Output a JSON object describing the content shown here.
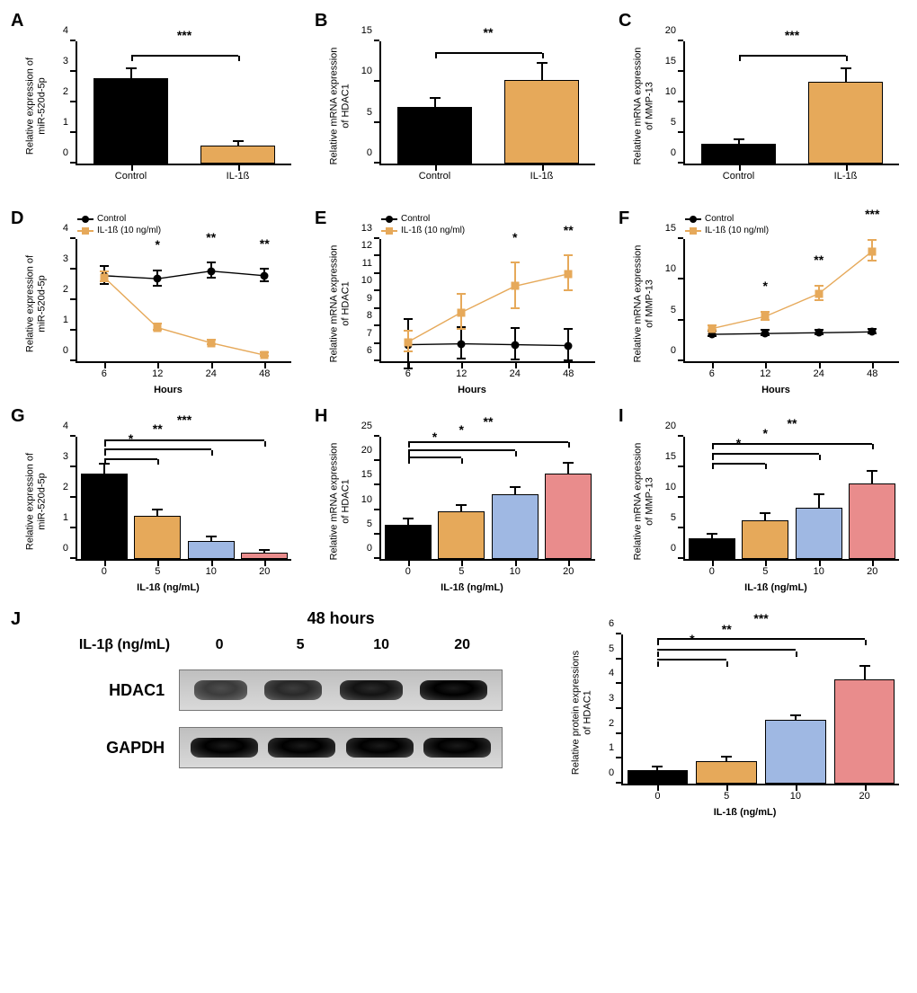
{
  "colors": {
    "black": "#000000",
    "orange": "#e6a95a",
    "blue": "#9fb8e3",
    "red": "#e98c8c",
    "axis": "#000000",
    "bg": "#ffffff"
  },
  "panels": {
    "A": {
      "label": "A",
      "type": "bar",
      "ylabel": "Relative expression of\nmiR-520d-5p",
      "ylim": [
        0,
        4
      ],
      "ytick_step": 1,
      "categories": [
        "Control",
        "IL-1ß"
      ],
      "values": [
        2.8,
        0.6
      ],
      "errors": [
        0.3,
        0.12
      ],
      "bar_colors": [
        "#000000",
        "#e6a95a"
      ],
      "bar_width": 0.35,
      "sig": [
        {
          "from": 0,
          "to": 1,
          "text": "***",
          "y": 3.5
        }
      ]
    },
    "B": {
      "label": "B",
      "type": "bar",
      "ylabel": "Relative mRNA expression\nof HDAC1",
      "ylim": [
        0,
        15
      ],
      "ytick_step": 5,
      "categories": [
        "Control",
        "IL-1ß"
      ],
      "values": [
        7.0,
        10.3
      ],
      "errors": [
        0.9,
        1.9
      ],
      "bar_colors": [
        "#000000",
        "#e6a95a"
      ],
      "bar_width": 0.35,
      "sig": [
        {
          "from": 0,
          "to": 1,
          "text": "**",
          "y": 13.5
        }
      ]
    },
    "C": {
      "label": "C",
      "type": "bar",
      "ylabel": "Relative mRNA expression\nof MMP-13",
      "ylim": [
        0,
        20
      ],
      "ytick_step": 5,
      "categories": [
        "Control",
        "IL-1ß"
      ],
      "values": [
        3.3,
        13.4
      ],
      "errors": [
        0.5,
        2.0
      ],
      "bar_colors": [
        "#000000",
        "#e6a95a"
      ],
      "bar_width": 0.35,
      "sig": [
        {
          "from": 0,
          "to": 1,
          "text": "***",
          "y": 17.5
        }
      ]
    },
    "D": {
      "label": "D",
      "type": "line",
      "ylabel": "Relative expression of\nmiR-520d-5p",
      "xlabel": "Hours",
      "ylim": [
        0,
        4
      ],
      "ytick_step": 1,
      "x": [
        6,
        12,
        24,
        48
      ],
      "legend": [
        {
          "name": "Control",
          "marker": "circle",
          "color": "#000000"
        },
        {
          "name": "IL-1ß (10 ng/ml)",
          "marker": "square",
          "color": "#e6a95a"
        }
      ],
      "series": [
        {
          "name": "Control",
          "color": "#000000",
          "marker": "circle",
          "y": [
            2.8,
            2.7,
            2.95,
            2.8
          ],
          "err": [
            0.3,
            0.25,
            0.25,
            0.2
          ]
        },
        {
          "name": "IL-1ß (10 ng/ml)",
          "color": "#e6a95a",
          "marker": "square",
          "y": [
            2.75,
            1.1,
            0.6,
            0.2
          ],
          "err": [
            0.15,
            0.1,
            0.08,
            0.06
          ]
        }
      ],
      "point_sig": [
        "",
        "*",
        "**",
        "**"
      ]
    },
    "E": {
      "label": "E",
      "type": "line",
      "ylabel": "Relative mRNA expression\nof HDAC1",
      "xlabel": "Hours",
      "ylim": [
        6,
        13
      ],
      "ytick_step": 1,
      "x": [
        6,
        12,
        24,
        48
      ],
      "legend": [
        {
          "name": "Control",
          "marker": "circle",
          "color": "#000000"
        },
        {
          "name": "IL-1ß (10 ng/ml)",
          "marker": "square",
          "color": "#e6a95a"
        }
      ],
      "series": [
        {
          "name": "Control",
          "color": "#000000",
          "marker": "circle",
          "y": [
            6.95,
            7.0,
            6.95,
            6.9
          ],
          "err": [
            1.4,
            0.9,
            0.9,
            0.9
          ]
        },
        {
          "name": "IL-1ß (10 ng/ml)",
          "color": "#e6a95a",
          "marker": "square",
          "y": [
            7.1,
            8.8,
            10.3,
            11.0
          ],
          "err": [
            0.6,
            1.0,
            1.3,
            1.0
          ]
        }
      ],
      "point_sig": [
        "",
        "",
        "*",
        "**"
      ]
    },
    "F": {
      "label": "F",
      "type": "line",
      "ylabel": "Relative mRNA expression\nof MMP-13",
      "xlabel": "Hours",
      "ylim": [
        0,
        15
      ],
      "ytick_step": 5,
      "x": [
        6,
        12,
        24,
        48
      ],
      "legend": [
        {
          "name": "Control",
          "marker": "circle",
          "color": "#000000"
        },
        {
          "name": "IL-1ß (10 ng/ml)",
          "marker": "square",
          "color": "#e6a95a"
        }
      ],
      "series": [
        {
          "name": "Control",
          "color": "#000000",
          "marker": "circle",
          "y": [
            3.3,
            3.4,
            3.5,
            3.6
          ],
          "err": [
            0.3,
            0.3,
            0.3,
            0.3
          ]
        },
        {
          "name": "IL-1ß (10 ng/ml)",
          "color": "#e6a95a",
          "marker": "square",
          "y": [
            4.0,
            5.5,
            8.3,
            13.5
          ],
          "err": [
            0.3,
            0.5,
            0.9,
            1.3
          ]
        }
      ],
      "point_sig": [
        "",
        "*",
        "**",
        "***"
      ]
    },
    "G": {
      "label": "G",
      "type": "bar",
      "ylabel": "Relative expression of\nmiR-520d-5p",
      "xlabel": "IL-1ß (ng/mL)",
      "ylim": [
        0,
        4
      ],
      "ytick_step": 1,
      "categories": [
        "0",
        "5",
        "10",
        "20"
      ],
      "values": [
        2.8,
        1.4,
        0.6,
        0.2
      ],
      "errors": [
        0.3,
        0.2,
        0.12,
        0.06
      ],
      "bar_colors": [
        "#000000",
        "#e6a95a",
        "#9fb8e3",
        "#e98c8c"
      ],
      "bar_width": 0.22,
      "sig": [
        {
          "from": 0,
          "to": 1,
          "text": "*",
          "y": 3.25
        },
        {
          "from": 0,
          "to": 2,
          "text": "**",
          "y": 3.55
        },
        {
          "from": 0,
          "to": 3,
          "text": "***",
          "y": 3.85
        }
      ]
    },
    "H": {
      "label": "H",
      "type": "bar",
      "ylabel": "Relative mRNA expression\nof HDAC1",
      "xlabel": "IL-1ß (ng/mL)",
      "ylim": [
        0,
        25
      ],
      "ytick_step": 5,
      "categories": [
        "0",
        "5",
        "10",
        "20"
      ],
      "values": [
        6.9,
        9.8,
        13.3,
        17.4
      ],
      "errors": [
        1.2,
        1.0,
        1.3,
        2.0
      ],
      "bar_colors": [
        "#000000",
        "#e6a95a",
        "#9fb8e3",
        "#e98c8c"
      ],
      "bar_width": 0.22,
      "sig": [
        {
          "from": 0,
          "to": 1,
          "text": "*",
          "y": 20.5
        },
        {
          "from": 0,
          "to": 2,
          "text": "*",
          "y": 22.0
        },
        {
          "from": 0,
          "to": 3,
          "text": "**",
          "y": 23.8
        }
      ]
    },
    "I": {
      "label": "I",
      "type": "bar",
      "ylabel": "Relative mRNA expression\nof MMP-13",
      "xlabel": "IL-1ß (ng/mL)",
      "ylim": [
        0,
        20
      ],
      "ytick_step": 5,
      "categories": [
        "0",
        "5",
        "10",
        "20"
      ],
      "values": [
        3.4,
        6.3,
        8.4,
        12.4
      ],
      "errors": [
        0.6,
        1.0,
        2.1,
        1.9
      ],
      "bar_colors": [
        "#000000",
        "#e6a95a",
        "#9fb8e3",
        "#e98c8c"
      ],
      "bar_width": 0.22,
      "sig": [
        {
          "from": 0,
          "to": 1,
          "text": "*",
          "y": 15.5
        },
        {
          "from": 0,
          "to": 2,
          "text": "*",
          "y": 17.0
        },
        {
          "from": 0,
          "to": 3,
          "text": "**",
          "y": 18.7
        }
      ]
    },
    "J": {
      "label": "J",
      "blot": {
        "title": "48 hours",
        "row_label": "IL-1β (ng/mL)",
        "doses": [
          "0",
          "5",
          "10",
          "20"
        ],
        "proteins": [
          "HDAC1",
          "GAPDH"
        ],
        "band_intensity": {
          "HDAC1": [
            0.35,
            0.55,
            0.8,
            1.0
          ],
          "GAPDH": [
            1.0,
            1.0,
            1.0,
            1.0
          ]
        }
      },
      "chart": {
        "type": "bar",
        "ylabel": "Relative protein expressions\nof HDAC1",
        "xlabel": "IL-1ß (ng/mL)",
        "ylim": [
          0,
          6
        ],
        "ytick_step": 1,
        "categories": [
          "0",
          "5",
          "10",
          "20"
        ],
        "values": [
          0.55,
          0.9,
          2.55,
          4.2
        ],
        "errors": [
          0.1,
          0.15,
          0.15,
          0.5
        ],
        "bar_colors": [
          "#000000",
          "#e6a95a",
          "#9fb8e3",
          "#e98c8c"
        ],
        "bar_width": 0.22,
        "sig": [
          {
            "from": 0,
            "to": 1,
            "text": "*",
            "y": 4.95
          },
          {
            "from": 0,
            "to": 2,
            "text": "**",
            "y": 5.35
          },
          {
            "from": 0,
            "to": 3,
            "text": "***",
            "y": 5.8
          }
        ]
      }
    }
  }
}
